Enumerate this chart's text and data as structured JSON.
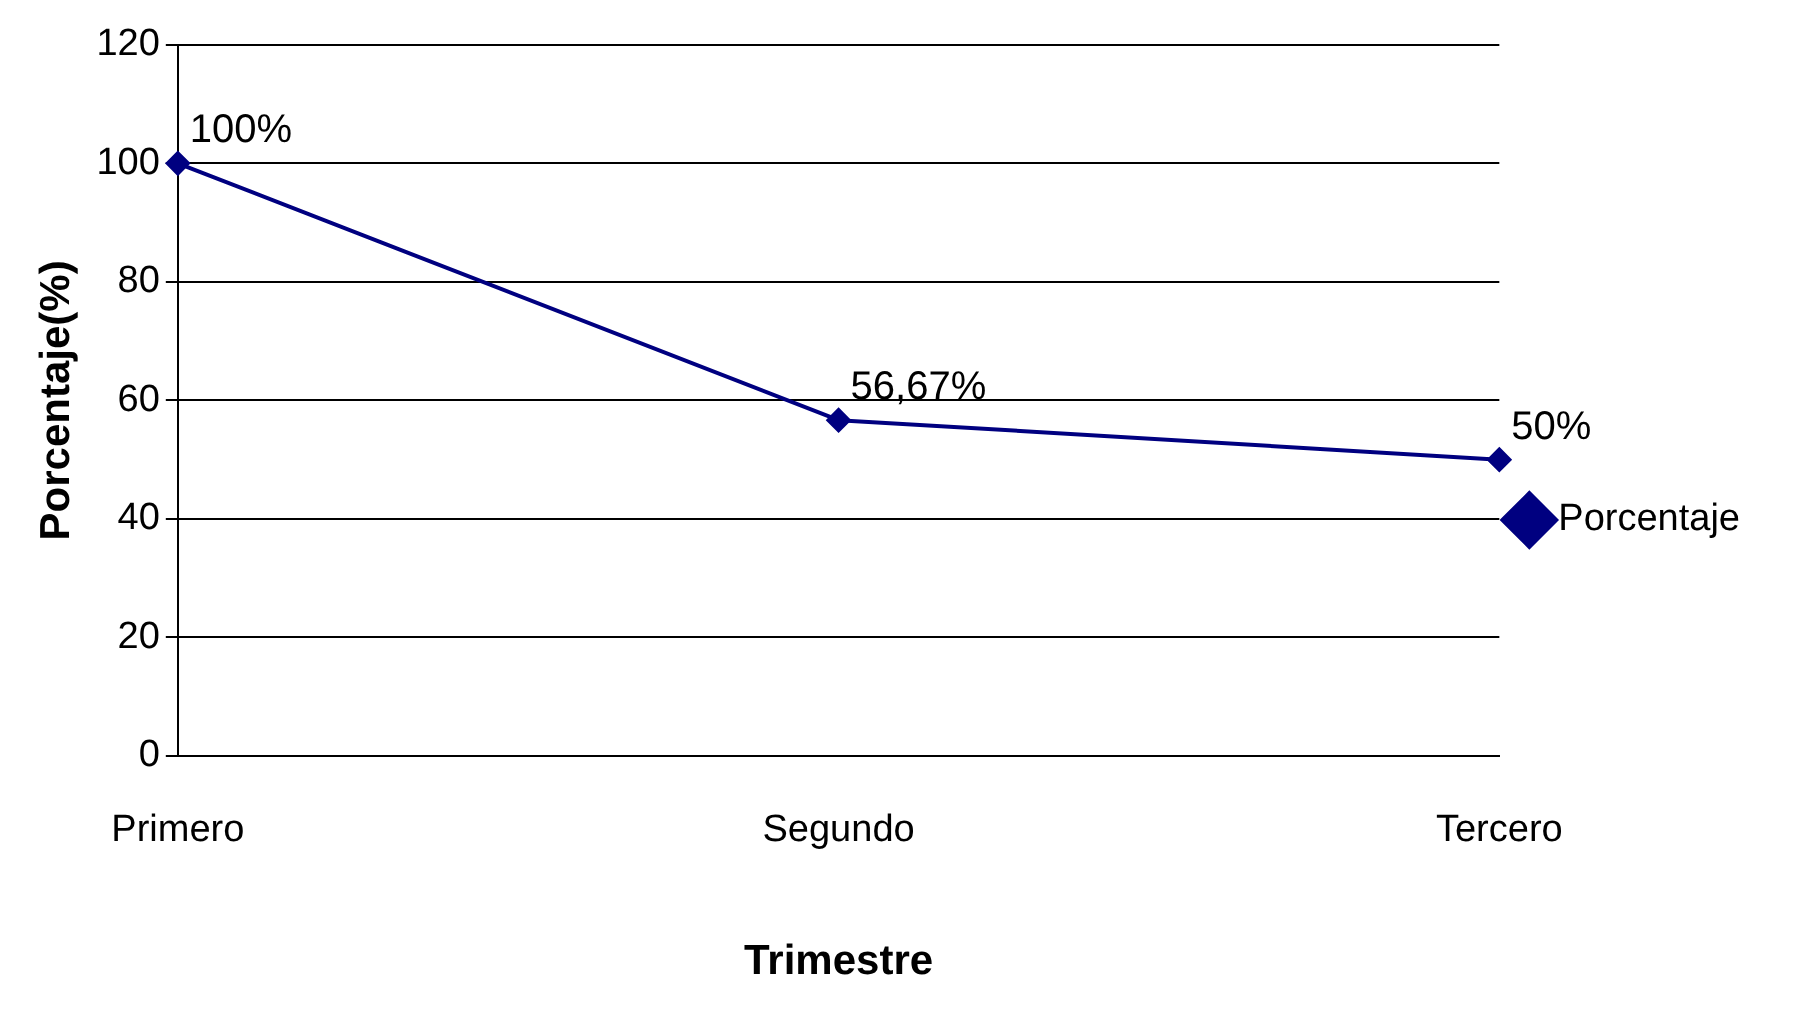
{
  "chart_data": {
    "type": "line",
    "xlabel": "Trimestre",
    "ylabel": "Porcentaje(%)",
    "categories": [
      "Primero",
      "Segundo",
      "Tercero"
    ],
    "series": [
      {
        "name": "Porcentaje",
        "color": "#000080",
        "values": [
          100,
          56.67,
          50
        ],
        "value_labels": [
          "100%",
          "56,67%",
          "50%"
        ]
      }
    ],
    "ylim": [
      0,
      120
    ],
    "yticks": [
      0,
      20,
      40,
      60,
      80,
      100,
      120
    ],
    "grid": "y",
    "legend": "right",
    "marker": "diamond",
    "line_style": "solid"
  }
}
